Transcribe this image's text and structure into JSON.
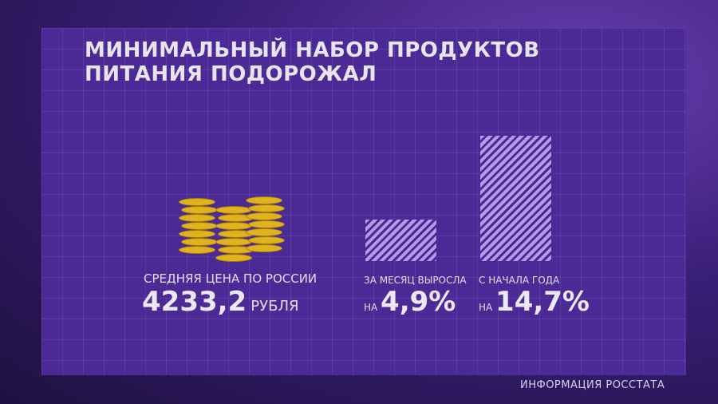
{
  "title_line1": "МИНИМАЛЬНЫЙ НАБОР ПРОДУКТОВ",
  "title_line2": "ПИТАНИЯ ПОДОРОЖАЛ",
  "price": {
    "label": "СРЕДНЯЯ ЦЕНА ПО РОССИИ",
    "value": "4233,2",
    "unit": "РУБЛЯ"
  },
  "footer": "ИНФОРМАЦИЯ РОССТАТА",
  "chart_data": {
    "type": "bar",
    "categories": [
      "ЗА МЕСЯЦ ВЫРОСЛА",
      "С НАЧАЛА ГОДА"
    ],
    "prefix": "НА",
    "values": [
      4.9,
      14.7
    ],
    "value_labels": [
      "4,9%",
      "14,7%"
    ],
    "ylim": [
      0,
      15
    ],
    "bar_color": "#b39be6"
  }
}
